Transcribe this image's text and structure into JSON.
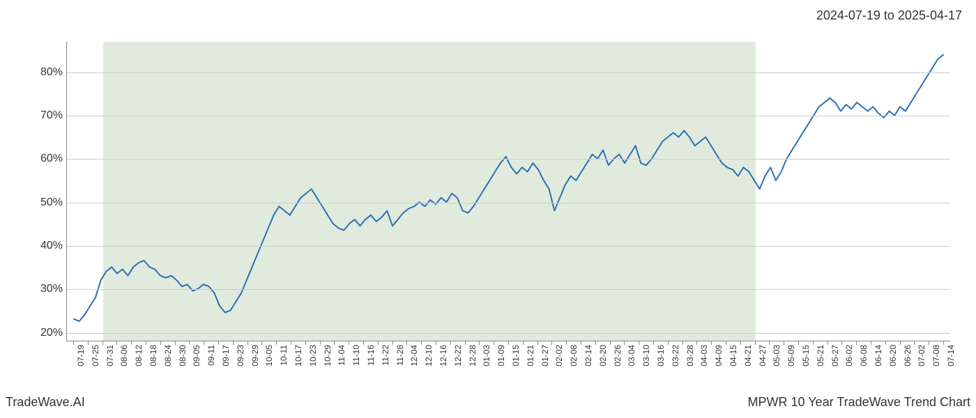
{
  "header": {
    "date_range": "2024-07-19 to 2025-04-17"
  },
  "footer": {
    "left": "TradeWave.AI",
    "right": "MPWR 10 Year TradeWave Trend Chart"
  },
  "chart": {
    "type": "line",
    "background_color": "#ffffff",
    "grid_color": "#cccccc",
    "axis_color": "#888888",
    "line_color": "#2a6fb5",
    "line_width": 2,
    "shaded_region": {
      "color": "#dce8d7",
      "opacity": 0.85,
      "start_index": 2,
      "end_index": 47
    },
    "y_axis": {
      "min": 18,
      "max": 87,
      "ticks": [
        20,
        30,
        40,
        50,
        60,
        70,
        80
      ],
      "suffix": "%",
      "label_fontsize": 16,
      "label_color": "#333333"
    },
    "x_axis": {
      "labels": [
        "07-19",
        "07-25",
        "07-31",
        "08-06",
        "08-12",
        "08-18",
        "08-24",
        "08-30",
        "09-05",
        "09-11",
        "09-17",
        "09-23",
        "09-29",
        "10-05",
        "10-11",
        "10-17",
        "10-23",
        "10-29",
        "11-04",
        "11-10",
        "11-16",
        "11-22",
        "11-28",
        "12-04",
        "12-10",
        "12-16",
        "12-22",
        "12-28",
        "01-03",
        "01-09",
        "01-15",
        "01-21",
        "01-27",
        "02-02",
        "02-08",
        "02-14",
        "02-20",
        "02-26",
        "03-04",
        "03-10",
        "03-16",
        "03-22",
        "03-28",
        "04-03",
        "04-09",
        "04-15",
        "04-21",
        "04-27",
        "05-03",
        "05-09",
        "05-15",
        "05-21",
        "05-27",
        "06-02",
        "06-08",
        "06-14",
        "06-20",
        "06-26",
        "07-02",
        "07-08",
        "07-14"
      ],
      "label_fontsize": 12,
      "label_color": "#333333",
      "label_rotation": -90
    },
    "data": [
      23,
      22.5,
      24,
      26,
      28,
      32,
      34,
      35,
      33.5,
      34.5,
      33,
      35,
      36,
      36.5,
      35,
      34.5,
      33,
      32.5,
      33,
      32,
      30.5,
      31,
      29.5,
      30,
      31,
      30.5,
      29,
      26,
      24.5,
      25,
      27,
      29,
      32,
      35,
      38,
      41,
      44,
      47,
      49,
      48,
      47,
      49,
      51,
      52,
      53,
      51,
      49,
      47,
      45,
      44,
      43.5,
      45,
      46,
      44.5,
      46,
      47,
      45.5,
      46.5,
      48,
      44.5,
      46,
      47.5,
      48.5,
      49,
      50,
      49,
      50.5,
      49.5,
      51,
      50,
      52,
      51,
      48,
      47.5,
      49,
      51,
      53,
      55,
      57,
      59,
      60.5,
      58,
      56.5,
      58,
      57,
      59,
      57.5,
      55,
      53,
      48,
      51,
      54,
      56,
      55,
      57,
      59,
      61,
      60,
      62,
      58.5,
      60,
      61,
      59,
      61,
      63,
      59,
      58.5,
      60,
      62,
      64,
      65,
      66,
      65,
      66.5,
      65,
      63,
      64,
      65,
      63,
      61,
      59,
      58,
      57.5,
      56,
      58,
      57,
      55,
      53,
      56,
      58,
      55,
      57,
      60,
      62,
      64,
      66,
      68,
      70,
      72,
      73,
      74,
      73,
      71,
      72.5,
      71.5,
      73,
      72,
      71,
      72,
      70.5,
      69.5,
      71,
      70,
      72,
      71,
      73,
      75,
      77,
      79,
      81,
      83,
      84
    ]
  }
}
